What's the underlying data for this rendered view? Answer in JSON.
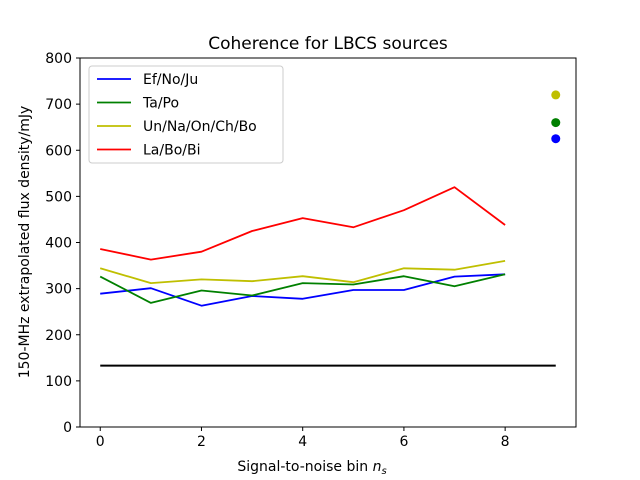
{
  "chart_data": {
    "type": "line",
    "title": "Coherence for LBCS sources",
    "xlabel": "Signal-to-noise bin",
    "xlabel_math": "n",
    "xlabel_sub": "s",
    "ylabel": "150-MHz extrapolated flux density/mJy",
    "xlim": [
      -0.4,
      9.4
    ],
    "ylim": [
      0,
      800
    ],
    "xticks": [
      0,
      2,
      4,
      6,
      8
    ],
    "yticks": [
      0,
      100,
      200,
      300,
      400,
      500,
      600,
      700,
      800
    ],
    "grid": false,
    "legend_position": "top-left",
    "x": [
      0,
      1,
      2,
      3,
      4,
      5,
      6,
      7,
      8
    ],
    "series": [
      {
        "name": "Ef/No/Ju",
        "color": "#0000ff",
        "values": [
          289,
          301,
          263,
          284,
          278,
          297,
          297,
          326,
          331
        ]
      },
      {
        "name": "Ta/Po",
        "color": "#008000",
        "values": [
          326,
          269,
          296,
          285,
          312,
          309,
          327,
          305,
          331
        ]
      },
      {
        "name": "Un/Na/On/Ch/Bo",
        "color": "#bfbf00",
        "values": [
          344,
          312,
          320,
          316,
          327,
          314,
          344,
          341,
          360
        ]
      },
      {
        "name": "La/Bo/Bi",
        "color": "#ff0000",
        "values": [
          386,
          363,
          380,
          425,
          453,
          433,
          470,
          520,
          438
        ]
      }
    ],
    "reference_line": {
      "color": "#000000",
      "x": [
        0,
        9
      ],
      "value": 133
    },
    "points": [
      {
        "x": 9,
        "value": 720,
        "color": "#bfbf00"
      },
      {
        "x": 9,
        "value": 660,
        "color": "#008000"
      },
      {
        "x": 9,
        "value": 625,
        "color": "#0000ff"
      }
    ]
  }
}
